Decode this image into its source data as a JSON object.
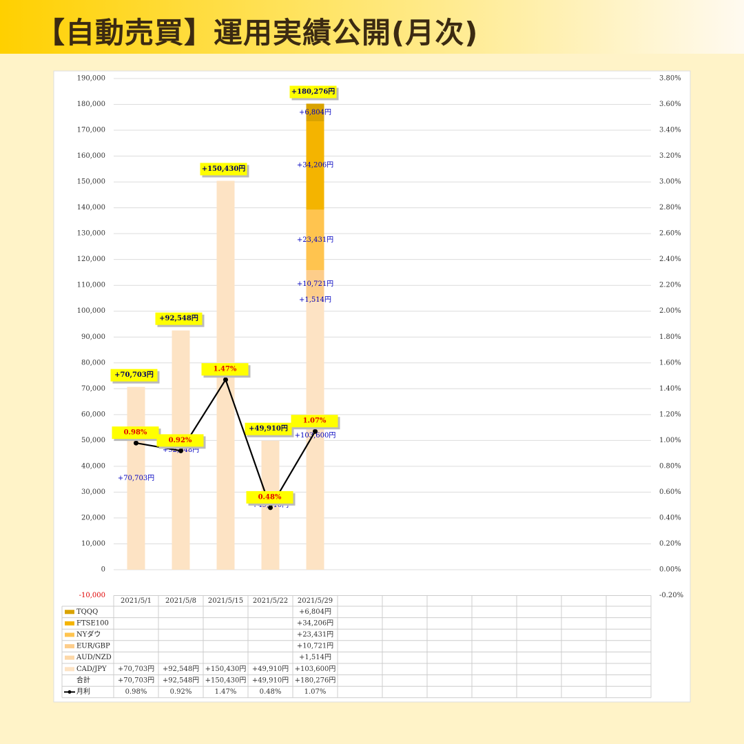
{
  "header": {
    "title": "【自動売買】運用実績公開(月次)"
  },
  "chart_data": {
    "type": "bar",
    "stacked": true,
    "categories": [
      "2021/5/1",
      "2021/5/8",
      "2021/5/15",
      "2021/5/22",
      "2021/5/29",
      null,
      null,
      null,
      null,
      null,
      null,
      null
    ],
    "series": [
      {
        "name": "CAD/JPY",
        "color": "#fde3c4",
        "values": [
          70703,
          92548,
          150430,
          49910,
          103600,
          null,
          null,
          null,
          null,
          null,
          null,
          null
        ],
        "value_labels": [
          "+70,703円",
          "+92,548円",
          "+150,430円",
          "+49,910円",
          "+103,600円",
          null,
          null,
          null,
          null,
          null,
          null,
          null
        ]
      },
      {
        "name": "AUD/NZD",
        "color": "#fdd8a8",
        "values": [
          null,
          null,
          null,
          null,
          1514,
          null,
          null,
          null,
          null,
          null,
          null,
          null
        ],
        "value_labels": [
          null,
          null,
          null,
          null,
          "+1,514円",
          null,
          null,
          null,
          null,
          null,
          null,
          null
        ]
      },
      {
        "name": "EUR/GBP",
        "color": "#fdcd8a",
        "values": [
          null,
          null,
          null,
          null,
          10721,
          null,
          null,
          null,
          null,
          null,
          null,
          null
        ],
        "value_labels": [
          null,
          null,
          null,
          null,
          "+10,721円",
          null,
          null,
          null,
          null,
          null,
          null,
          null
        ]
      },
      {
        "name": "NYダウ",
        "color": "#ffc44f",
        "values": [
          null,
          null,
          null,
          null,
          23431,
          null,
          null,
          null,
          null,
          null,
          null,
          null
        ],
        "value_labels": [
          null,
          null,
          null,
          null,
          "+23,431円",
          null,
          null,
          null,
          null,
          null,
          null,
          null
        ]
      },
      {
        "name": "FTSE100",
        "color": "#f4b400",
        "values": [
          null,
          null,
          null,
          null,
          34206,
          null,
          null,
          null,
          null,
          null,
          null,
          null
        ],
        "value_labels": [
          null,
          null,
          null,
          null,
          "+34,206円",
          null,
          null,
          null,
          null,
          null,
          null,
          null
        ]
      },
      {
        "name": "TQQQ",
        "color": "#d9a300",
        "values": [
          null,
          null,
          null,
          null,
          6804,
          null,
          null,
          null,
          null,
          null,
          null,
          null
        ],
        "value_labels": [
          null,
          null,
          null,
          null,
          "+6,804円",
          null,
          null,
          null,
          null,
          null,
          null,
          null
        ]
      },
      {
        "name": "月利",
        "type": "line",
        "axis": "y2",
        "color": "#000000",
        "values": [
          0.98,
          0.92,
          1.47,
          0.48,
          1.07,
          null,
          null,
          null,
          null,
          null,
          null,
          null
        ],
        "value_labels": [
          "0.98%",
          "0.92%",
          "1.47%",
          "0.48%",
          "1.07%",
          null,
          null,
          null,
          null,
          null,
          null,
          null
        ]
      }
    ],
    "totals": {
      "name": "合計",
      "values": [
        70703,
        92548,
        150430,
        49910,
        180276,
        null,
        null,
        null,
        null,
        null,
        null,
        null
      ],
      "value_labels": [
        "+70,703円",
        "+92,548円",
        "+150,430円",
        "+49,910円",
        "+180,276円",
        null,
        null,
        null,
        null,
        null,
        null,
        null
      ]
    },
    "ylim": [
      -10000,
      190000
    ],
    "yticks": [
      {
        "value": -10000,
        "label": "-10,000"
      },
      0,
      {
        "value": 10000,
        "label": "10,000"
      },
      {
        "value": 20000,
        "label": "20,000"
      },
      {
        "value": 30000,
        "label": "30,000"
      },
      {
        "value": 40000,
        "label": "40,000"
      },
      {
        "value": 50000,
        "label": "50,000"
      },
      {
        "value": 60000,
        "label": "60,000"
      },
      {
        "value": 70000,
        "label": "70,000"
      },
      {
        "value": 80000,
        "label": "80,000"
      },
      {
        "value": 90000,
        "label": "90,000"
      },
      {
        "value": 100000,
        "label": "100,000"
      },
      {
        "value": 110000,
        "label": "110,000"
      },
      {
        "value": 120000,
        "label": "120,000"
      },
      {
        "value": 130000,
        "label": "130,000"
      },
      {
        "value": 140000,
        "label": "140,000"
      },
      {
        "value": 150000,
        "label": "150,000"
      },
      {
        "value": 160000,
        "label": "160,000"
      },
      {
        "value": 170000,
        "label": "170,000"
      },
      {
        "value": 180000,
        "label": "180,000"
      },
      {
        "value": 190000,
        "label": "190,000"
      }
    ],
    "negative_tick_color": "#e00000",
    "y2lim": [
      -0.2,
      3.8
    ],
    "y2ticks": [
      {
        "value": -0.2,
        "label": "-0.20%"
      },
      {
        "value": 0,
        "label": "0.00%"
      },
      {
        "value": 0.2,
        "label": "0.20%"
      },
      {
        "value": 0.4,
        "label": "0.40%"
      },
      {
        "value": 0.6,
        "label": "0.60%"
      },
      {
        "value": 0.8,
        "label": "0.80%"
      },
      {
        "value": 1.0,
        "label": "1.00%"
      },
      {
        "value": 1.2,
        "label": "1.20%"
      },
      {
        "value": 1.4,
        "label": "1.40%"
      },
      {
        "value": 1.6,
        "label": "1.60%"
      },
      {
        "value": 1.8,
        "label": "1.80%"
      },
      {
        "value": 2.0,
        "label": "2.00%"
      },
      {
        "value": 2.2,
        "label": "2.20%"
      },
      {
        "value": 2.4,
        "label": "2.40%"
      },
      {
        "value": 2.6,
        "label": "2.60%"
      },
      {
        "value": 2.8,
        "label": "2.80%"
      },
      {
        "value": 3.0,
        "label": "3.00%"
      },
      {
        "value": 3.2,
        "label": "3.20%"
      },
      {
        "value": 3.4,
        "label": "3.40%"
      },
      {
        "value": 3.6,
        "label": "3.60%"
      },
      {
        "value": 3.8,
        "label": "3.80%"
      }
    ],
    "grid": true
  }
}
